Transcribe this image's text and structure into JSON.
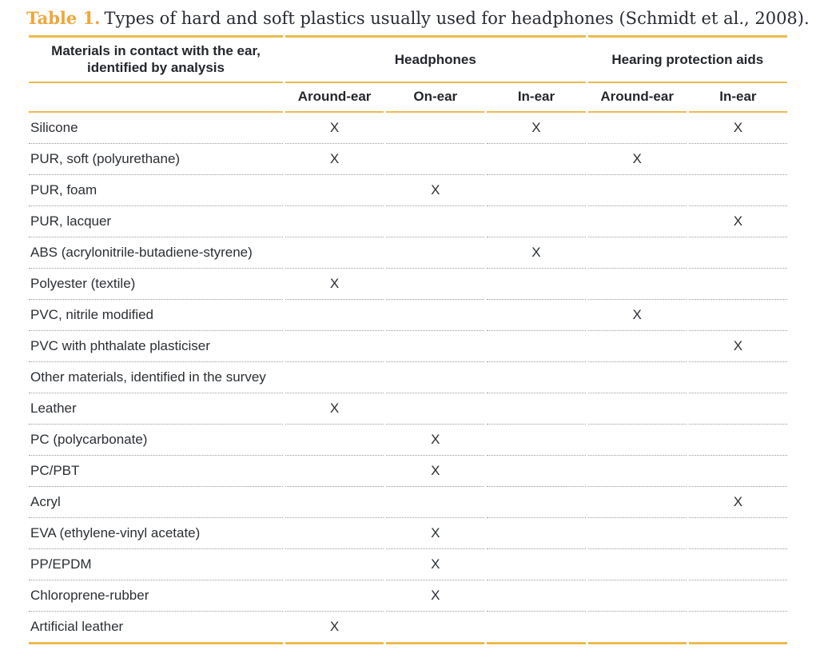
{
  "title": {
    "label": "Table 1.",
    "text": "Types of hard and soft plastics usually used for headphones (Schmidt et al., 2008)."
  },
  "table": {
    "col1_header": "Materials in contact with the ear, identified by analysis",
    "groups": [
      {
        "label": "Headphones",
        "span": 3
      },
      {
        "label": "Hearing protection aids",
        "span": 2
      }
    ],
    "subheaders": [
      "Around-ear",
      "On-ear",
      "In-ear",
      "Around-ear",
      "In-ear"
    ],
    "mark_symbol": "X",
    "rows": [
      {
        "material": "Silicone",
        "marks": [
          "X",
          "",
          "X",
          "",
          "X"
        ]
      },
      {
        "material": "PUR, soft (polyurethane)",
        "marks": [
          "X",
          "",
          "",
          "X",
          ""
        ]
      },
      {
        "material": "PUR, foam",
        "marks": [
          "",
          "X",
          "",
          "",
          ""
        ]
      },
      {
        "material": "PUR, lacquer",
        "marks": [
          "",
          "",
          "",
          "",
          "X"
        ]
      },
      {
        "material": "ABS (acrylonitrile-butadiene-styrene)",
        "marks": [
          "",
          "",
          "X",
          "",
          ""
        ]
      },
      {
        "material": "Polyester (textile)",
        "marks": [
          "X",
          "",
          "",
          "",
          ""
        ]
      },
      {
        "material": "PVC, nitrile modified",
        "marks": [
          "",
          "",
          "",
          "X",
          ""
        ]
      },
      {
        "material": "PVC with phthalate plasticiser",
        "marks": [
          "",
          "",
          "",
          "",
          "X"
        ]
      },
      {
        "material": "Other materials, identified in the survey",
        "marks": [
          "",
          "",
          "",
          "",
          ""
        ]
      },
      {
        "material": "Leather",
        "marks": [
          "X",
          "",
          "",
          "",
          ""
        ]
      },
      {
        "material": "PC (polycarbonate)",
        "marks": [
          "",
          "X",
          "",
          "",
          ""
        ]
      },
      {
        "material": "PC/PBT",
        "marks": [
          "",
          "X",
          "",
          "",
          ""
        ]
      },
      {
        "material": "Acryl",
        "marks": [
          "",
          "",
          "",
          "",
          "X"
        ]
      },
      {
        "material": "EVA (ethylene-vinyl acetate)",
        "marks": [
          "",
          "X",
          "",
          "",
          ""
        ]
      },
      {
        "material": "PP/EPDM",
        "marks": [
          "",
          "X",
          "",
          "",
          ""
        ]
      },
      {
        "material": "Chloroprene-rubber",
        "marks": [
          "",
          "X",
          "",
          "",
          ""
        ]
      },
      {
        "material": "Artificial leather",
        "marks": [
          "X",
          "",
          "",
          "",
          ""
        ]
      }
    ]
  },
  "colors": {
    "accent_gold": "#EFA63A",
    "rule_gold": "#EBBB4E",
    "text_dark": "#24272c",
    "dotted_gray": "#9b9b9b"
  }
}
